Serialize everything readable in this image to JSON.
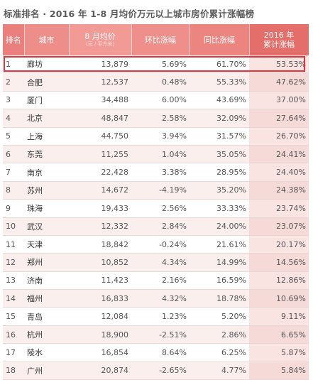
{
  "title": "标准排名 · 2016 年 1-8 月均价万元以上城市房价累计涨幅榜",
  "headers": {
    "rank": "排名",
    "city": "城市",
    "price": "8 月均价",
    "price_unit": "（元 / 平方米）",
    "mom": "环比涨幅",
    "yoy": "同比涨幅",
    "cum_line1": "2016 年",
    "cum_line2": "累计涨幅"
  },
  "colors": {
    "header_accent": "#e46f6a",
    "highlight_border": "#e0353a"
  },
  "rows": [
    {
      "rank": "1",
      "city": "廊坊",
      "price": "13,879",
      "mom": "5.69%",
      "yoy": "61.70%",
      "cum": "53.53%"
    },
    {
      "rank": "2",
      "city": "合肥",
      "price": "12,537",
      "mom": "0.48%",
      "yoy": "55.33%",
      "cum": "47.62%"
    },
    {
      "rank": "3",
      "city": "厦门",
      "price": "34,488",
      "mom": "6.00%",
      "yoy": "43.69%",
      "cum": "37.00%"
    },
    {
      "rank": "4",
      "city": "北京",
      "price": "48,847",
      "mom": "2.58%",
      "yoy": "32.09%",
      "cum": "27.64%"
    },
    {
      "rank": "5",
      "city": "上海",
      "price": "44,750",
      "mom": "3.94%",
      "yoy": "31.57%",
      "cum": "26.70%"
    },
    {
      "rank": "6",
      "city": "东莞",
      "price": "11,255",
      "mom": "1.04%",
      "yoy": "35.05%",
      "cum": "24.41%"
    },
    {
      "rank": "7",
      "city": "南京",
      "price": "22,428",
      "mom": "3.38%",
      "yoy": "28.95%",
      "cum": "24.40%"
    },
    {
      "rank": "8",
      "city": "苏州",
      "price": "14,672",
      "mom": "-4.19%",
      "yoy": "35.20%",
      "cum": "24.38%"
    },
    {
      "rank": "9",
      "city": "珠海",
      "price": "19,433",
      "mom": "2.56%",
      "yoy": "33.33%",
      "cum": "23.74%"
    },
    {
      "rank": "10",
      "city": "武汉",
      "price": "12,332",
      "mom": "2.84%",
      "yoy": "24.00%",
      "cum": "23.07%"
    },
    {
      "rank": "11",
      "city": "天津",
      "price": "18,842",
      "mom": "-0.24%",
      "yoy": "21.61%",
      "cum": "20.17%"
    },
    {
      "rank": "12",
      "city": "郑州",
      "price": "10,852",
      "mom": "4.34%",
      "yoy": "14.99%",
      "cum": "14.56%"
    },
    {
      "rank": "13",
      "city": "济南",
      "price": "11,423",
      "mom": "2.16%",
      "yoy": "16.59%",
      "cum": "12.86%"
    },
    {
      "rank": "14",
      "city": "福州",
      "price": "16,833",
      "mom": "4.32%",
      "yoy": "18.78%",
      "cum": "10.69%"
    },
    {
      "rank": "15",
      "city": "青岛",
      "price": "12,084",
      "mom": "1.23%",
      "yoy": "5.20%",
      "cum": "9.11%"
    },
    {
      "rank": "16",
      "city": "杭州",
      "price": "18,900",
      "mom": "-2.51%",
      "yoy": "2.86%",
      "cum": "6.65%"
    },
    {
      "rank": "17",
      "city": "陵水",
      "price": "16,854",
      "mom": "8.64%",
      "yoy": "6.25%",
      "cum": "5.87%"
    },
    {
      "rank": "18",
      "city": "广州",
      "price": "20,874",
      "mom": "-2.65%",
      "yoy": "4.77%",
      "cum": "5.84%"
    }
  ]
}
